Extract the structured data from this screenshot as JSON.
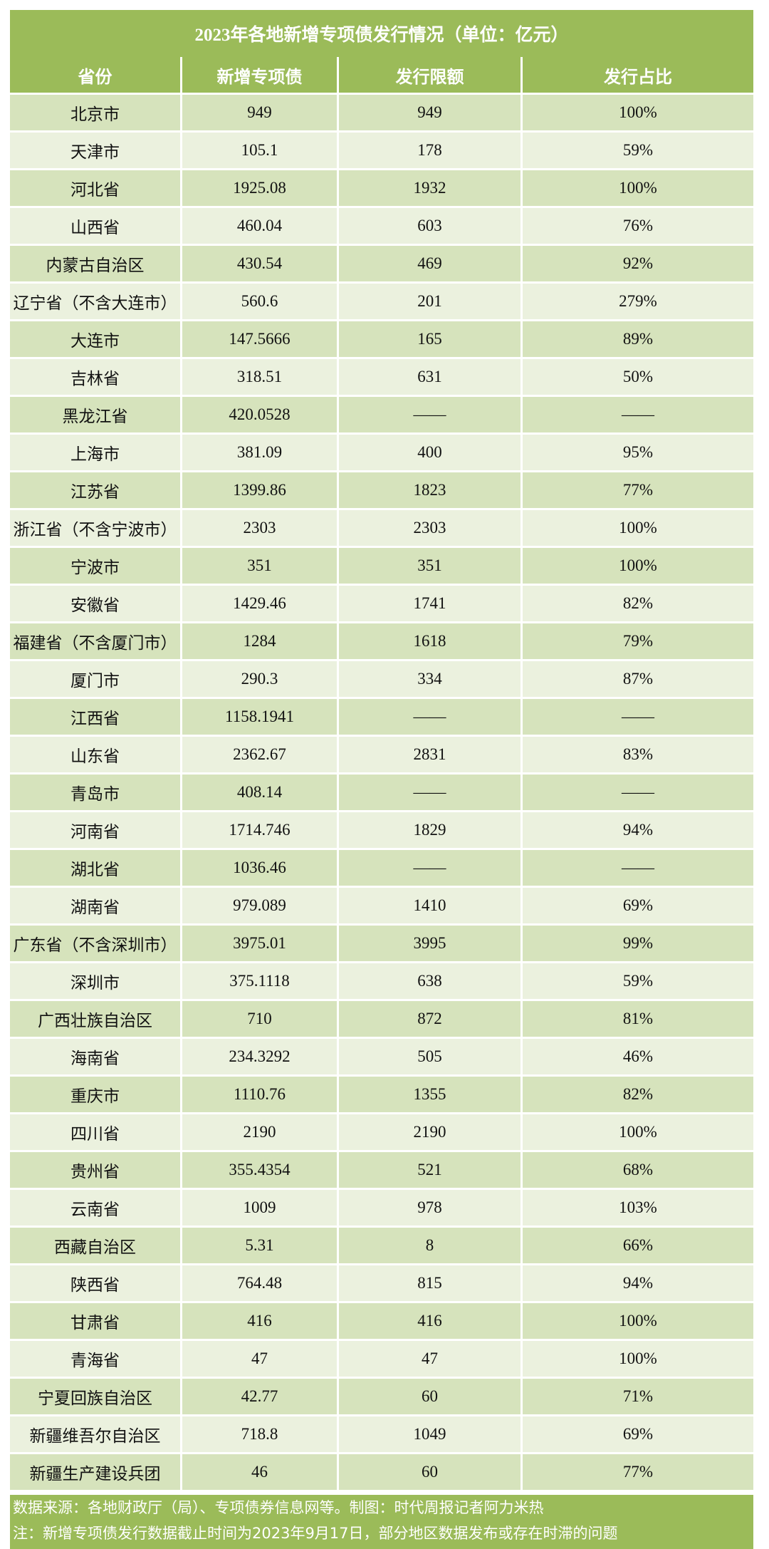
{
  "title": "2023年各地新增专项债发行情况（单位：亿元）",
  "table": {
    "header": [
      "省份",
      "新增专项债",
      "发行限额",
      "发行占比"
    ],
    "rows": [
      [
        "北京市",
        "949",
        "949",
        "100%"
      ],
      [
        "天津市",
        "105.1",
        "178",
        "59%"
      ],
      [
        "河北省",
        "1925.08",
        "1932",
        "100%"
      ],
      [
        "山西省",
        "460.04",
        "603",
        "76%"
      ],
      [
        "内蒙古自治区",
        "430.54",
        "469",
        "92%"
      ],
      [
        "辽宁省（不含大连市）",
        "560.6",
        "201",
        "279%"
      ],
      [
        "大连市",
        "147.5666",
        "165",
        "89%"
      ],
      [
        "吉林省",
        "318.51",
        "631",
        "50%"
      ],
      [
        "黑龙江省",
        "420.0528",
        "——",
        "——"
      ],
      [
        "上海市",
        "381.09",
        "400",
        "95%"
      ],
      [
        "江苏省",
        "1399.86",
        "1823",
        "77%"
      ],
      [
        "浙江省（不含宁波市）",
        "2303",
        "2303",
        "100%"
      ],
      [
        "宁波市",
        "351",
        "351",
        "100%"
      ],
      [
        "安徽省",
        "1429.46",
        "1741",
        "82%"
      ],
      [
        "福建省（不含厦门市）",
        "1284",
        "1618",
        "79%"
      ],
      [
        "厦门市",
        "290.3",
        "334",
        "87%"
      ],
      [
        "江西省",
        "1158.1941",
        "——",
        "——"
      ],
      [
        "山东省",
        "2362.67",
        "2831",
        "83%"
      ],
      [
        "青岛市",
        "408.14",
        "——",
        "——"
      ],
      [
        "河南省",
        "1714.746",
        "1829",
        "94%"
      ],
      [
        "湖北省",
        "1036.46",
        "——",
        "——"
      ],
      [
        "湖南省",
        "979.089",
        "1410",
        "69%"
      ],
      [
        "广东省（不含深圳市）",
        "3975.01",
        "3995",
        "99%"
      ],
      [
        "深圳市",
        "375.1118",
        "638",
        "59%"
      ],
      [
        "广西壮族自治区",
        "710",
        "872",
        "81%"
      ],
      [
        "海南省",
        "234.3292",
        "505",
        "46%"
      ],
      [
        "重庆市",
        "1110.76",
        "1355",
        "82%"
      ],
      [
        "四川省",
        "2190",
        "2190",
        "100%"
      ],
      [
        "贵州省",
        "355.4354",
        "521",
        "68%"
      ],
      [
        "云南省",
        "1009",
        "978",
        "103%"
      ],
      [
        "西藏自治区",
        "5.31",
        "8",
        "66%"
      ],
      [
        "陕西省",
        "764.48",
        "815",
        "94%"
      ],
      [
        "甘肃省",
        "416",
        "416",
        "100%"
      ],
      [
        "青海省",
        "47",
        "47",
        "100%"
      ],
      [
        "宁夏回族自治区",
        "42.77",
        "60",
        "71%"
      ],
      [
        "新疆维吾尔自治区",
        "718.8",
        "1049",
        "69%"
      ],
      [
        "新疆生产建设兵团",
        "46",
        "60",
        "77%"
      ]
    ]
  },
  "footer": [
    "数据来源：各地财政厅（局）、专项债券信息网等。制图：时代周报记者阿力米热",
    "注：新增专项债发行数据截止时间为2023年9月17日，部分地区数据发布或存在时滞的问题"
  ]
}
